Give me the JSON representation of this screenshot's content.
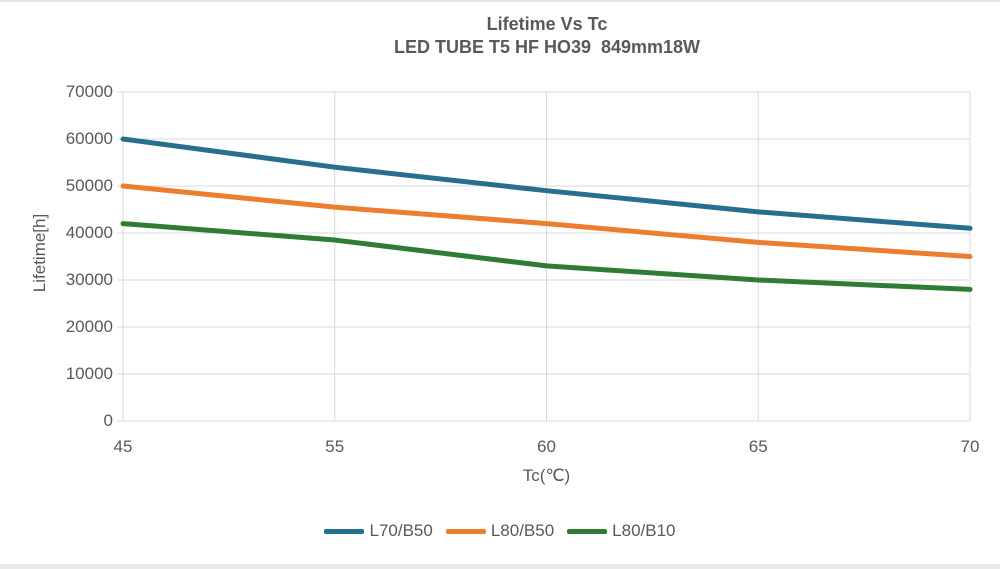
{
  "page": {
    "background": "#ffffff",
    "border_color": "#e4e4e4",
    "text_color": "#595959"
  },
  "chart_data": {
    "type": "line",
    "title": "Lifetime Vs Tc",
    "subtitle": "LED TUBE T5 HF HO39  849mm18W",
    "xlabel": "Tc(℃)",
    "ylabel": "Lifetime[h]",
    "categories": [
      "45",
      "55",
      "60",
      "65",
      "70"
    ],
    "series": [
      {
        "name": "L70/B50",
        "color": "#26708e",
        "values": [
          60000,
          54000,
          49000,
          44500,
          41000
        ]
      },
      {
        "name": "L80/B50",
        "color": "#ed7d31",
        "values": [
          50000,
          45500,
          42000,
          38000,
          35000
        ]
      },
      {
        "name": "L80/B10",
        "color": "#2e7d32",
        "values": [
          42000,
          38500,
          33000,
          30000,
          28000
        ]
      }
    ],
    "ylim": [
      0,
      70000
    ],
    "ytick_step": 10000,
    "yticks": [
      "0",
      "10000",
      "20000",
      "30000",
      "40000",
      "50000",
      "60000",
      "70000"
    ],
    "grid": true,
    "gridline_color": "#d9d9d9",
    "legend_position": "bottom",
    "line_width": 5
  }
}
